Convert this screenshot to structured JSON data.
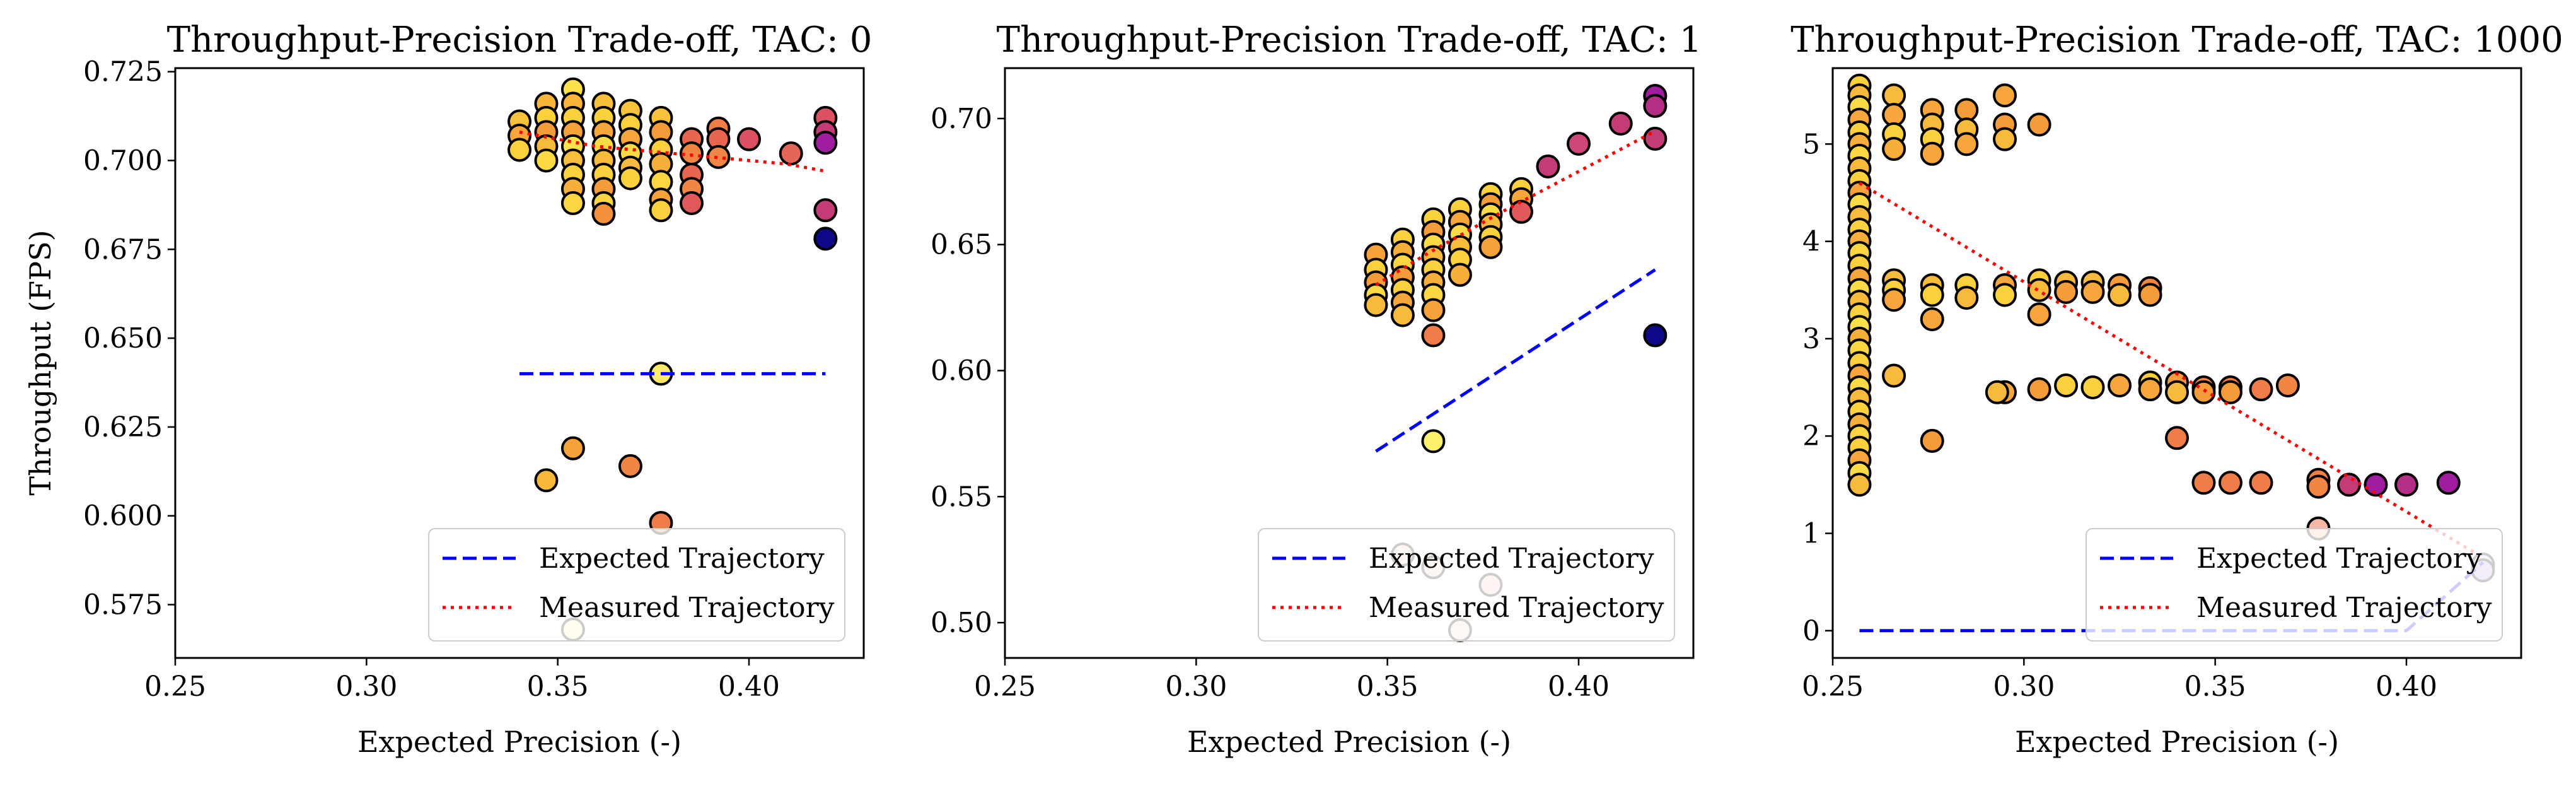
{
  "figure": {
    "y_axis_label": "Throughput (FPS)",
    "x_axis_label": "Expected Precision (-)",
    "legend": [
      "Expected Trajectory",
      "Measured Trajectory"
    ]
  },
  "chart_data": [
    {
      "type": "scatter",
      "title": "Throughput-Precision Trade-off, TAC: 0",
      "xlabel": "Expected Precision (-)",
      "ylabel": "Throughput (FPS)",
      "xlim": [
        0.25,
        0.43
      ],
      "ylim": [
        0.56,
        0.726
      ],
      "xticks": [
        "0.25",
        "0.30",
        "0.35",
        "0.40"
      ],
      "yticks": [
        "0.575",
        "0.600",
        "0.625",
        "0.650",
        "0.675",
        "0.700",
        "0.725"
      ],
      "legend_position": "lower right",
      "series": [
        {
          "name": "Expected Trajectory",
          "style": "dashed",
          "color": "#0000ff",
          "x": [
            0.34,
            0.42
          ],
          "y": [
            0.64,
            0.64
          ]
        },
        {
          "name": "Measured Trajectory",
          "style": "dotted",
          "color": "#ff0000",
          "x": [
            0.34,
            0.35,
            0.36,
            0.37,
            0.38,
            0.39,
            0.4,
            0.41,
            0.42
          ],
          "y": [
            0.708,
            0.706,
            0.704,
            0.703,
            0.702,
            0.701,
            0.7,
            0.699,
            0.697
          ]
        }
      ],
      "points": [
        [
          0.34,
          0.711,
          "#f8c23b"
        ],
        [
          0.34,
          0.707,
          "#f6a63a"
        ],
        [
          0.34,
          0.703,
          "#fbd13e"
        ],
        [
          0.347,
          0.716,
          "#f9b53a"
        ],
        [
          0.347,
          0.712,
          "#fbd03d"
        ],
        [
          0.347,
          0.708,
          "#f59c3a"
        ],
        [
          0.347,
          0.704,
          "#f8ba3c"
        ],
        [
          0.347,
          0.7,
          "#fdd945"
        ],
        [
          0.354,
          0.72,
          "#fce04a"
        ],
        [
          0.354,
          0.716,
          "#f9b53a"
        ],
        [
          0.354,
          0.712,
          "#fbd03d"
        ],
        [
          0.354,
          0.708,
          "#f6a23b"
        ],
        [
          0.354,
          0.704,
          "#fde14a"
        ],
        [
          0.354,
          0.7,
          "#f8bd3c"
        ],
        [
          0.354,
          0.696,
          "#fbd23e"
        ],
        [
          0.354,
          0.692,
          "#f7ae3b"
        ],
        [
          0.354,
          0.688,
          "#fcd642"
        ],
        [
          0.362,
          0.716,
          "#f9c03c"
        ],
        [
          0.362,
          0.712,
          "#fbd03d"
        ],
        [
          0.362,
          0.708,
          "#f6a63a"
        ],
        [
          0.362,
          0.704,
          "#fcdb46"
        ],
        [
          0.362,
          0.7,
          "#f8ba3c"
        ],
        [
          0.362,
          0.696,
          "#fbd23e"
        ],
        [
          0.362,
          0.692,
          "#f59c3a"
        ],
        [
          0.362,
          0.688,
          "#fcd642"
        ],
        [
          0.362,
          0.685,
          "#f3913c"
        ],
        [
          0.369,
          0.714,
          "#f8c23b"
        ],
        [
          0.369,
          0.71,
          "#fbd03d"
        ],
        [
          0.369,
          0.706,
          "#f6a63a"
        ],
        [
          0.369,
          0.702,
          "#fcdb46"
        ],
        [
          0.369,
          0.698,
          "#f8ba3c"
        ],
        [
          0.369,
          0.695,
          "#fbd23e"
        ],
        [
          0.377,
          0.712,
          "#f8c23b"
        ],
        [
          0.377,
          0.708,
          "#f59c3a"
        ],
        [
          0.377,
          0.703,
          "#fbd03d"
        ],
        [
          0.377,
          0.699,
          "#f7ae3b"
        ],
        [
          0.377,
          0.694,
          "#fcd642"
        ],
        [
          0.377,
          0.689,
          "#f6a23b"
        ],
        [
          0.377,
          0.686,
          "#fbd03d"
        ],
        [
          0.385,
          0.706,
          "#e8654f"
        ],
        [
          0.385,
          0.702,
          "#f08544"
        ],
        [
          0.385,
          0.696,
          "#e8654f"
        ],
        [
          0.385,
          0.692,
          "#f08544"
        ],
        [
          0.385,
          0.688,
          "#e1595a"
        ],
        [
          0.392,
          0.709,
          "#ee7d47"
        ],
        [
          0.392,
          0.706,
          "#e8654f"
        ],
        [
          0.392,
          0.701,
          "#f08544"
        ],
        [
          0.4,
          0.706,
          "#dc5161"
        ],
        [
          0.411,
          0.702,
          "#e36658"
        ],
        [
          0.42,
          0.712,
          "#dc5161"
        ],
        [
          0.42,
          0.708,
          "#c43c76"
        ],
        [
          0.42,
          0.705,
          "#a01da0"
        ],
        [
          0.42,
          0.686,
          "#c43c76"
        ],
        [
          0.42,
          0.678,
          "#0d0887"
        ],
        [
          0.377,
          0.64,
          "#fdeb69"
        ],
        [
          0.354,
          0.619,
          "#f6a23b"
        ],
        [
          0.347,
          0.61,
          "#f8b63a"
        ],
        [
          0.369,
          0.614,
          "#f08544"
        ],
        [
          0.377,
          0.598,
          "#ee7d47"
        ],
        [
          0.354,
          0.568,
          "#fdf3b0"
        ]
      ]
    },
    {
      "type": "scatter",
      "title": "Throughput-Precision Trade-off, TAC: 1",
      "xlabel": "Expected Precision (-)",
      "ylabel": "",
      "xlim": [
        0.25,
        0.43
      ],
      "ylim": [
        0.486,
        0.72
      ],
      "xticks": [
        "0.25",
        "0.30",
        "0.35",
        "0.40"
      ],
      "yticks": [
        "0.50",
        "0.55",
        "0.60",
        "0.65",
        "0.70"
      ],
      "legend_position": "lower right",
      "series": [
        {
          "name": "Expected Trajectory",
          "style": "dashed",
          "color": "#0000ff",
          "x": [
            0.347,
            0.42
          ],
          "y": [
            0.568,
            0.64
          ]
        },
        {
          "name": "Measured Trajectory",
          "style": "dotted",
          "color": "#ff0000",
          "x": [
            0.347,
            0.36,
            0.38,
            0.4,
            0.42
          ],
          "y": [
            0.634,
            0.646,
            0.663,
            0.679,
            0.695
          ]
        }
      ],
      "points": [
        [
          0.347,
          0.646,
          "#f6a23b"
        ],
        [
          0.347,
          0.64,
          "#fbd03d"
        ],
        [
          0.347,
          0.635,
          "#f59c3a"
        ],
        [
          0.347,
          0.63,
          "#fcdb46"
        ],
        [
          0.347,
          0.626,
          "#f8ba3c"
        ],
        [
          0.354,
          0.652,
          "#fbd23e"
        ],
        [
          0.354,
          0.647,
          "#f7ae3b"
        ],
        [
          0.354,
          0.642,
          "#fcd642"
        ],
        [
          0.354,
          0.637,
          "#f59c3a"
        ],
        [
          0.354,
          0.632,
          "#fbd03d"
        ],
        [
          0.354,
          0.627,
          "#f6a63a"
        ],
        [
          0.354,
          0.622,
          "#f8ba3c"
        ],
        [
          0.362,
          0.66,
          "#fbd03d"
        ],
        [
          0.362,
          0.655,
          "#f59c3a"
        ],
        [
          0.362,
          0.65,
          "#fcdb46"
        ],
        [
          0.362,
          0.645,
          "#f8ba3c"
        ],
        [
          0.362,
          0.64,
          "#fbd23e"
        ],
        [
          0.362,
          0.635,
          "#f7ae3b"
        ],
        [
          0.362,
          0.63,
          "#fcd642"
        ],
        [
          0.362,
          0.624,
          "#f6a23b"
        ],
        [
          0.362,
          0.614,
          "#ee7d47"
        ],
        [
          0.369,
          0.664,
          "#fbd03d"
        ],
        [
          0.369,
          0.659,
          "#f6a63a"
        ],
        [
          0.369,
          0.654,
          "#fcdb46"
        ],
        [
          0.369,
          0.649,
          "#f8ba3c"
        ],
        [
          0.369,
          0.644,
          "#fbd23e"
        ],
        [
          0.369,
          0.638,
          "#f7ae3b"
        ],
        [
          0.377,
          0.67,
          "#fbd03d"
        ],
        [
          0.377,
          0.666,
          "#f59c3a"
        ],
        [
          0.377,
          0.662,
          "#fcdb46"
        ],
        [
          0.377,
          0.658,
          "#f8ba3c"
        ],
        [
          0.377,
          0.653,
          "#fbd23e"
        ],
        [
          0.377,
          0.649,
          "#f6a23b"
        ],
        [
          0.385,
          0.672,
          "#fbd03d"
        ],
        [
          0.385,
          0.668,
          "#f6a63a"
        ],
        [
          0.385,
          0.663,
          "#e1595a"
        ],
        [
          0.392,
          0.681,
          "#c43c76"
        ],
        [
          0.4,
          0.69,
          "#d0467a"
        ],
        [
          0.411,
          0.698,
          "#c43c76"
        ],
        [
          0.42,
          0.709,
          "#a01da0"
        ],
        [
          0.42,
          0.705,
          "#b42e86"
        ],
        [
          0.42,
          0.692,
          "#c43c76"
        ],
        [
          0.42,
          0.614,
          "#0d0887"
        ],
        [
          0.362,
          0.572,
          "#fdf06a"
        ],
        [
          0.354,
          0.527,
          "#f7cfc8"
        ],
        [
          0.362,
          0.522,
          "#f0d0cb"
        ],
        [
          0.377,
          0.515,
          "#f7d3c9"
        ],
        [
          0.369,
          0.497,
          "#f6d6cf"
        ]
      ]
    },
    {
      "type": "scatter",
      "title": "Throughput-Precision Trade-off, TAC: 1000",
      "xlabel": "Expected Precision (-)",
      "ylabel": "",
      "xlim": [
        0.25,
        0.43
      ],
      "ylim": [
        -0.28,
        5.78
      ],
      "xticks": [
        "0.25",
        "0.30",
        "0.35",
        "0.40"
      ],
      "yticks": [
        "0",
        "1",
        "2",
        "3",
        "4",
        "5"
      ],
      "legend_position": "lower right",
      "series": [
        {
          "name": "Expected Trajectory",
          "style": "dashed",
          "color": "#0000ff",
          "x": [
            0.257,
            0.4,
            0.42
          ],
          "y": [
            0.0,
            0.0,
            0.7
          ]
        },
        {
          "name": "Measured Trajectory",
          "style": "dotted",
          "color": "#ff0000",
          "x": [
            0.257,
            0.42
          ],
          "y": [
            4.6,
            0.75
          ]
        }
      ],
      "points": [
        [
          0.257,
          5.6,
          "#fbd03d"
        ],
        [
          0.257,
          5.5,
          "#f8ba3c"
        ],
        [
          0.257,
          5.38,
          "#fcdb46"
        ],
        [
          0.257,
          5.25,
          "#f6a63a"
        ],
        [
          0.257,
          5.12,
          "#fbd23e"
        ],
        [
          0.257,
          5.0,
          "#f7ae3b"
        ],
        [
          0.257,
          4.88,
          "#fcd642"
        ],
        [
          0.257,
          4.75,
          "#f8ba3c"
        ],
        [
          0.257,
          4.62,
          "#fbd03d"
        ],
        [
          0.257,
          4.5,
          "#f6a23b"
        ],
        [
          0.257,
          4.38,
          "#fcdb46"
        ],
        [
          0.257,
          4.25,
          "#f8ba3c"
        ],
        [
          0.257,
          4.12,
          "#fbd23e"
        ],
        [
          0.257,
          4.0,
          "#f7ae3b"
        ],
        [
          0.257,
          3.88,
          "#fcd642"
        ],
        [
          0.257,
          3.75,
          "#fbd03d"
        ],
        [
          0.257,
          3.62,
          "#f6a63a"
        ],
        [
          0.257,
          3.5,
          "#fcdb46"
        ],
        [
          0.257,
          3.38,
          "#f8ba3c"
        ],
        [
          0.257,
          3.25,
          "#fbd23e"
        ],
        [
          0.257,
          3.12,
          "#fce04a"
        ],
        [
          0.257,
          3.0,
          "#f7ae3b"
        ],
        [
          0.257,
          2.88,
          "#fcd642"
        ],
        [
          0.257,
          2.75,
          "#fbd03d"
        ],
        [
          0.257,
          2.62,
          "#f6a63a"
        ],
        [
          0.257,
          2.5,
          "#fcdb46"
        ],
        [
          0.257,
          2.38,
          "#f8ba3c"
        ],
        [
          0.257,
          2.25,
          "#fbd23e"
        ],
        [
          0.257,
          2.12,
          "#f7ae3b"
        ],
        [
          0.257,
          2.0,
          "#fcd642"
        ],
        [
          0.257,
          1.88,
          "#fbd03d"
        ],
        [
          0.257,
          1.75,
          "#f6a63a"
        ],
        [
          0.257,
          1.62,
          "#fcdb46"
        ],
        [
          0.257,
          1.5,
          "#f8ba3c"
        ],
        [
          0.266,
          5.5,
          "#f8ba3c"
        ],
        [
          0.266,
          5.3,
          "#f6a63a"
        ],
        [
          0.266,
          5.1,
          "#fbd03d"
        ],
        [
          0.266,
          4.95,
          "#f7ae3b"
        ],
        [
          0.266,
          3.6,
          "#f8ba3c"
        ],
        [
          0.266,
          3.5,
          "#fbd03d"
        ],
        [
          0.266,
          3.4,
          "#f6a63a"
        ],
        [
          0.266,
          2.62,
          "#f8ba3c"
        ],
        [
          0.276,
          5.35,
          "#f6a63a"
        ],
        [
          0.276,
          5.2,
          "#f8ba3c"
        ],
        [
          0.276,
          5.05,
          "#fbd03d"
        ],
        [
          0.276,
          4.9,
          "#f6a63a"
        ],
        [
          0.276,
          3.55,
          "#f8ba3c"
        ],
        [
          0.276,
          3.45,
          "#fbd03d"
        ],
        [
          0.276,
          3.2,
          "#f6a63a"
        ],
        [
          0.276,
          1.95,
          "#f59c3a"
        ],
        [
          0.285,
          5.35,
          "#f59c3a"
        ],
        [
          0.285,
          5.15,
          "#f8ba3c"
        ],
        [
          0.285,
          5.0,
          "#f6a63a"
        ],
        [
          0.285,
          3.55,
          "#fbd03d"
        ],
        [
          0.285,
          3.42,
          "#f8ba3c"
        ],
        [
          0.295,
          5.5,
          "#f6a63a"
        ],
        [
          0.295,
          5.2,
          "#f59c3a"
        ],
        [
          0.295,
          5.05,
          "#f8ba3c"
        ],
        [
          0.295,
          3.55,
          "#f6a63a"
        ],
        [
          0.295,
          3.45,
          "#fbd03d"
        ],
        [
          0.295,
          2.45,
          "#f6a63a"
        ],
        [
          0.293,
          2.45,
          "#f8ba3c"
        ],
        [
          0.304,
          5.2,
          "#f59c3a"
        ],
        [
          0.304,
          3.6,
          "#fbd03d"
        ],
        [
          0.304,
          3.5,
          "#f8ba3c"
        ],
        [
          0.304,
          3.25,
          "#f6a63a"
        ],
        [
          0.304,
          2.48,
          "#f59c3a"
        ],
        [
          0.311,
          3.58,
          "#f8ba3c"
        ],
        [
          0.311,
          3.48,
          "#f59c3a"
        ],
        [
          0.311,
          2.52,
          "#fbd03d"
        ],
        [
          0.318,
          3.58,
          "#f8ba3c"
        ],
        [
          0.318,
          3.48,
          "#f6a63a"
        ],
        [
          0.318,
          2.5,
          "#fbd03d"
        ],
        [
          0.325,
          3.55,
          "#f59c3a"
        ],
        [
          0.325,
          3.45,
          "#f8ba3c"
        ],
        [
          0.325,
          2.52,
          "#f6a63a"
        ],
        [
          0.333,
          3.52,
          "#f08544"
        ],
        [
          0.333,
          3.45,
          "#f59c3a"
        ],
        [
          0.333,
          2.55,
          "#fbd03d"
        ],
        [
          0.333,
          2.48,
          "#f6a63a"
        ],
        [
          0.34,
          2.55,
          "#f59c3a"
        ],
        [
          0.34,
          2.45,
          "#f8ba3c"
        ],
        [
          0.34,
          1.98,
          "#ee7d47"
        ],
        [
          0.347,
          2.5,
          "#f08544"
        ],
        [
          0.347,
          2.45,
          "#f59c3a"
        ],
        [
          0.347,
          1.52,
          "#ee7d47"
        ],
        [
          0.354,
          2.5,
          "#ee7d47"
        ],
        [
          0.354,
          2.45,
          "#f59c3a"
        ],
        [
          0.354,
          1.52,
          "#ee7d47"
        ],
        [
          0.362,
          2.48,
          "#ee7d47"
        ],
        [
          0.362,
          1.52,
          "#ee7d47"
        ],
        [
          0.369,
          2.52,
          "#f08544"
        ],
        [
          0.377,
          1.55,
          "#ee7d47"
        ],
        [
          0.377,
          1.48,
          "#f08544"
        ],
        [
          0.377,
          1.05,
          "#f4b8a4"
        ],
        [
          0.385,
          1.5,
          "#c43c76"
        ],
        [
          0.392,
          1.5,
          "#a01da0"
        ],
        [
          0.4,
          1.5,
          "#b42e86"
        ],
        [
          0.411,
          1.52,
          "#a01da0"
        ],
        [
          0.42,
          0.68,
          "#c9c7e6"
        ],
        [
          0.42,
          0.62,
          "#c8a6e0"
        ]
      ]
    }
  ]
}
